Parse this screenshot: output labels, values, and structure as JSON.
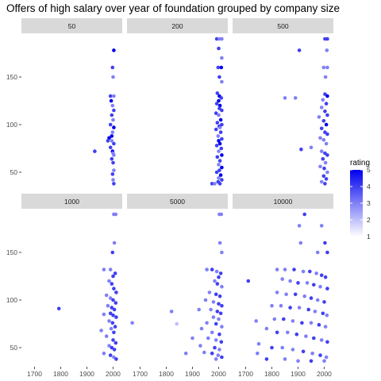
{
  "chart_data": {
    "type": "scatter",
    "title": "Offers of high salary over year of foundation grouped by company size",
    "xlabel": "",
    "ylabel": "",
    "facet_by": "company size",
    "facets": [
      "50",
      "200",
      "500",
      "1000",
      "5000",
      "10000"
    ],
    "xlim": [
      1650,
      2035
    ],
    "ylim": [
      30,
      195
    ],
    "x_ticks": [
      1700,
      1800,
      1900,
      2000
    ],
    "y_ticks": [
      50,
      100,
      150
    ],
    "color_scale": {
      "name": "rating",
      "min": 1,
      "max": 5,
      "low_color": "#ffffff",
      "high_color": "#0000ee",
      "ticks": [
        1,
        2,
        3,
        4,
        5
      ]
    },
    "grid": false,
    "legend_position": "right",
    "points": {
      "50": [
        [
          2003,
          178,
          5
        ],
        [
          1998,
          160,
          4
        ],
        [
          2000,
          150,
          3
        ],
        [
          1990,
          130,
          4
        ],
        [
          2003,
          130,
          3
        ],
        [
          1993,
          125,
          5
        ],
        [
          1998,
          120,
          3
        ],
        [
          2003,
          115,
          4
        ],
        [
          1995,
          110,
          4
        ],
        [
          2000,
          105,
          3
        ],
        [
          1990,
          100,
          4
        ],
        [
          2003,
          97,
          5
        ],
        [
          1998,
          92,
          3
        ],
        [
          1985,
          86,
          5
        ],
        [
          1980,
          83,
          4
        ],
        [
          1995,
          83,
          3
        ],
        [
          2003,
          80,
          4
        ],
        [
          1990,
          76,
          4
        ],
        [
          1930,
          72,
          4
        ],
        [
          1998,
          72,
          5
        ],
        [
          2003,
          68,
          3
        ],
        [
          1995,
          64,
          4
        ],
        [
          2000,
          60,
          4
        ],
        [
          2003,
          52,
          3
        ],
        [
          1998,
          48,
          4
        ],
        [
          2000,
          42,
          3
        ],
        [
          2003,
          38,
          4
        ],
        [
          1995,
          88,
          5
        ],
        [
          2000,
          70,
          3
        ]
      ],
      "200": [
        [
          1993,
          190,
          4
        ],
        [
          2003,
          190,
          3
        ],
        [
          2012,
          190,
          3
        ],
        [
          2000,
          180,
          4
        ],
        [
          2012,
          170,
          3
        ],
        [
          1998,
          160,
          4
        ],
        [
          2010,
          160,
          5
        ],
        [
          2003,
          150,
          4
        ],
        [
          2012,
          145,
          3
        ],
        [
          1995,
          133,
          4
        ],
        [
          2003,
          130,
          5
        ],
        [
          2010,
          128,
          4
        ],
        [
          2000,
          125,
          5
        ],
        [
          1993,
          122,
          4
        ],
        [
          2005,
          120,
          5
        ],
        [
          2012,
          115,
          4
        ],
        [
          1990,
          112,
          4
        ],
        [
          2000,
          110,
          3
        ],
        [
          2008,
          105,
          5
        ],
        [
          1995,
          102,
          4
        ],
        [
          2012,
          100,
          4
        ],
        [
          2003,
          98,
          5
        ],
        [
          1990,
          95,
          4
        ],
        [
          2008,
          92,
          4
        ],
        [
          1998,
          88,
          3
        ],
        [
          2012,
          85,
          4
        ],
        [
          2000,
          83,
          5
        ],
        [
          2005,
          80,
          5
        ],
        [
          1993,
          78,
          4
        ],
        [
          2010,
          75,
          4
        ],
        [
          2000,
          72,
          3
        ],
        [
          2012,
          68,
          5
        ],
        [
          1995,
          66,
          4
        ],
        [
          2005,
          62,
          4
        ],
        [
          2000,
          58,
          3
        ],
        [
          2012,
          55,
          5
        ],
        [
          2003,
          52,
          4
        ],
        [
          1993,
          50,
          4
        ],
        [
          2008,
          47,
          5
        ],
        [
          2000,
          44,
          3
        ],
        [
          2012,
          42,
          4
        ],
        [
          1998,
          40,
          4
        ],
        [
          1975,
          38,
          4
        ],
        [
          1985,
          38,
          3
        ],
        [
          2005,
          38,
          4
        ],
        [
          2003,
          117,
          4
        ],
        [
          2005,
          97,
          3
        ]
      ],
      "500": [
        [
          1905,
          178,
          4
        ],
        [
          2003,
          190,
          4
        ],
        [
          2012,
          190,
          4
        ],
        [
          2010,
          178,
          3
        ],
        [
          1998,
          160,
          3
        ],
        [
          2012,
          160,
          3
        ],
        [
          2005,
          150,
          3
        ],
        [
          1850,
          128,
          3
        ],
        [
          1890,
          128,
          3
        ],
        [
          2003,
          132,
          4
        ],
        [
          2012,
          130,
          5
        ],
        [
          1995,
          126,
          3
        ],
        [
          2008,
          122,
          4
        ],
        [
          1990,
          118,
          3
        ],
        [
          2003,
          114,
          4
        ],
        [
          2012,
          110,
          4
        ],
        [
          1980,
          108,
          3
        ],
        [
          1998,
          104,
          4
        ],
        [
          2008,
          100,
          5
        ],
        [
          1990,
          96,
          4
        ],
        [
          2003,
          92,
          4
        ],
        [
          2012,
          90,
          4
        ],
        [
          1985,
          86,
          3
        ],
        [
          1998,
          84,
          3
        ],
        [
          2008,
          80,
          3
        ],
        [
          1950,
          76,
          3
        ],
        [
          1912,
          74,
          4
        ],
        [
          1990,
          72,
          3
        ],
        [
          2003,
          70,
          4
        ],
        [
          2012,
          68,
          4
        ],
        [
          1995,
          64,
          4
        ],
        [
          2005,
          60,
          3
        ],
        [
          1985,
          56,
          3
        ],
        [
          2000,
          54,
          4
        ],
        [
          2012,
          50,
          3
        ],
        [
          1998,
          46,
          4
        ],
        [
          2008,
          43,
          4
        ],
        [
          1990,
          40,
          3
        ],
        [
          2003,
          38,
          4
        ]
      ],
      "1000": [
        [
          2003,
          190,
          3
        ],
        [
          2010,
          190,
          3
        ],
        [
          2005,
          160,
          3
        ],
        [
          1998,
          150,
          4
        ],
        [
          1965,
          132,
          3
        ],
        [
          1990,
          132,
          3
        ],
        [
          2008,
          128,
          4
        ],
        [
          2000,
          125,
          4
        ],
        [
          1985,
          120,
          3
        ],
        [
          1995,
          117,
          4
        ],
        [
          2003,
          112,
          4
        ],
        [
          2012,
          108,
          4
        ],
        [
          1975,
          105,
          3
        ],
        [
          1990,
          102,
          3
        ],
        [
          2000,
          100,
          4
        ],
        [
          2010,
          97,
          4
        ],
        [
          1980,
          94,
          3
        ],
        [
          1995,
          92,
          4
        ],
        [
          1793,
          91,
          4
        ],
        [
          2005,
          90,
          4
        ],
        [
          1965,
          85,
          3
        ],
        [
          1990,
          86,
          4
        ],
        [
          2000,
          84,
          4
        ],
        [
          2012,
          82,
          4
        ],
        [
          1985,
          78,
          3
        ],
        [
          1998,
          76,
          4
        ],
        [
          2008,
          72,
          4
        ],
        [
          1955,
          68,
          3
        ],
        [
          1993,
          70,
          3
        ],
        [
          2003,
          66,
          4
        ],
        [
          1975,
          62,
          3
        ],
        [
          2000,
          58,
          4
        ],
        [
          2010,
          55,
          4
        ],
        [
          1985,
          52,
          3
        ],
        [
          1995,
          50,
          4
        ],
        [
          2005,
          48,
          4
        ],
        [
          1965,
          44,
          3
        ],
        [
          1990,
          42,
          4
        ],
        [
          2003,
          40,
          3
        ],
        [
          2012,
          38,
          4
        ]
      ],
      "5000": [
        [
          2003,
          190,
          3
        ],
        [
          2010,
          190,
          3
        ],
        [
          2005,
          160,
          3
        ],
        [
          2012,
          150,
          3
        ],
        [
          1955,
          132,
          3
        ],
        [
          1975,
          132,
          4
        ],
        [
          1993,
          130,
          3
        ],
        [
          2008,
          128,
          4
        ],
        [
          2000,
          124,
          4
        ],
        [
          1985,
          120,
          3
        ],
        [
          1995,
          117,
          4
        ],
        [
          2012,
          114,
          3
        ],
        [
          1965,
          108,
          3
        ],
        [
          1990,
          106,
          4
        ],
        [
          2005,
          104,
          4
        ],
        [
          1950,
          100,
          3
        ],
        [
          1980,
          98,
          3
        ],
        [
          2000,
          96,
          4
        ],
        [
          2012,
          94,
          4
        ],
        [
          1925,
          90,
          3
        ],
        [
          1970,
          90,
          3
        ],
        [
          1995,
          88,
          4
        ],
        [
          2008,
          86,
          4
        ],
        [
          1980,
          82,
          3
        ],
        [
          2000,
          80,
          3
        ],
        [
          1955,
          76,
          3
        ],
        [
          1990,
          75,
          4
        ],
        [
          2012,
          72,
          3
        ],
        [
          1935,
          70,
          3
        ],
        [
          1975,
          66,
          3
        ],
        [
          2003,
          64,
          4
        ],
        [
          1960,
          60,
          3
        ],
        [
          1990,
          58,
          3
        ],
        [
          2010,
          56,
          4
        ],
        [
          1930,
          52,
          3
        ],
        [
          1985,
          50,
          4
        ],
        [
          2003,
          48,
          3
        ],
        [
          1945,
          45,
          3
        ],
        [
          1975,
          44,
          4
        ],
        [
          1998,
          42,
          3
        ],
        [
          2012,
          40,
          4
        ],
        [
          1990,
          38,
          3
        ],
        [
          1670,
          76,
          3
        ],
        [
          1820,
          88,
          3
        ],
        [
          1840,
          75,
          2
        ],
        [
          1875,
          44,
          3
        ],
        [
          1900,
          60,
          3
        ]
      ],
      "10000": [
        [
          1905,
          178,
          3
        ],
        [
          1925,
          190,
          4
        ],
        [
          1990,
          178,
          3
        ],
        [
          2003,
          160,
          4
        ],
        [
          1910,
          160,
          3
        ],
        [
          1975,
          150,
          3
        ],
        [
          2012,
          150,
          4
        ],
        [
          1820,
          132,
          3
        ],
        [
          1850,
          132,
          3
        ],
        [
          1885,
          132,
          4
        ],
        [
          1920,
          130,
          3
        ],
        [
          1945,
          130,
          4
        ],
        [
          1970,
          128,
          3
        ],
        [
          1990,
          126,
          4
        ],
        [
          2005,
          124,
          4
        ],
        [
          1710,
          120,
          4
        ],
        [
          1840,
          122,
          3
        ],
        [
          1870,
          120,
          3
        ],
        [
          1900,
          118,
          4
        ],
        [
          1935,
          118,
          3
        ],
        [
          1960,
          116,
          4
        ],
        [
          1985,
          114,
          3
        ],
        [
          2012,
          112,
          4
        ],
        [
          1820,
          108,
          3
        ],
        [
          1855,
          106,
          3
        ],
        [
          1890,
          106,
          4
        ],
        [
          1925,
          104,
          3
        ],
        [
          1950,
          102,
          4
        ],
        [
          1975,
          100,
          3
        ],
        [
          2000,
          98,
          4
        ],
        [
          1800,
          94,
          3
        ],
        [
          1835,
          94,
          3
        ],
        [
          1870,
          92,
          4
        ],
        [
          1905,
          92,
          3
        ],
        [
          1940,
          90,
          4
        ],
        [
          1965,
          88,
          3
        ],
        [
          1995,
          86,
          4
        ],
        [
          2010,
          84,
          3
        ],
        [
          1810,
          80,
          3
        ],
        [
          1845,
          80,
          4
        ],
        [
          1880,
          78,
          3
        ],
        [
          1915,
          76,
          4
        ],
        [
          1950,
          76,
          3
        ],
        [
          1980,
          74,
          4
        ],
        [
          2005,
          72,
          3
        ],
        [
          1740,
          78,
          3
        ],
        [
          1780,
          70,
          3
        ],
        [
          1820,
          66,
          4
        ],
        [
          1860,
          66,
          3
        ],
        [
          1895,
          64,
          4
        ],
        [
          1930,
          62,
          3
        ],
        [
          1960,
          60,
          4
        ],
        [
          1990,
          58,
          3
        ],
        [
          2012,
          56,
          4
        ],
        [
          1750,
          54,
          3
        ],
        [
          1800,
          50,
          4
        ],
        [
          1840,
          50,
          3
        ],
        [
          1880,
          48,
          3
        ],
        [
          1920,
          46,
          4
        ],
        [
          1955,
          44,
          3
        ],
        [
          1985,
          42,
          4
        ],
        [
          2008,
          40,
          3
        ],
        [
          1745,
          44,
          3
        ],
        [
          1780,
          38,
          4
        ],
        [
          1850,
          38,
          3
        ],
        [
          1900,
          36,
          3
        ],
        [
          1950,
          36,
          4
        ],
        [
          2000,
          36,
          3
        ]
      ]
    }
  }
}
